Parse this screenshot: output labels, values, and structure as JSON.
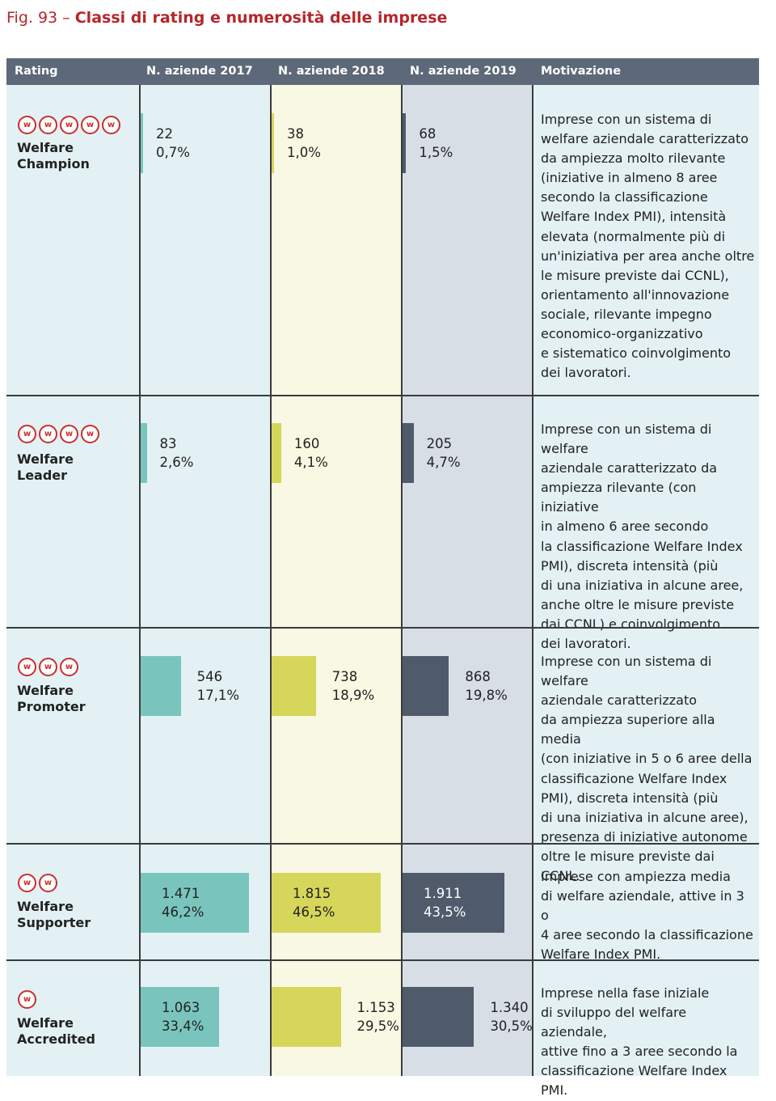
{
  "figure": {
    "number": "Fig. 93 –",
    "title": "Classi di rating e numerosità delle imprese"
  },
  "headers": [
    "Rating",
    "N. aziende 2017",
    "N. aziende 2018",
    "N. aziende 2019",
    "Motivazione"
  ],
  "colors": {
    "header_bg": "#5d6878",
    "col_2017_bg": "#e3f1f4",
    "col_2018_bg": "#f8f8e3",
    "col_2019_bg": "#d7dee6",
    "bar_2017": "#79c5be",
    "bar_2018": "#d6d75a",
    "bar_2019": "#4f5a6b",
    "badge": "#c8302f",
    "title": "#b5262a"
  },
  "chart_data": {
    "type": "table",
    "years": [
      "2017",
      "2018",
      "2019"
    ],
    "rows": [
      {
        "badges": 5,
        "badge_letter": "w",
        "name_line1": "Welfare",
        "name_line2": "Champion",
        "counts": [
          "22",
          "38",
          "68"
        ],
        "percents": [
          "0,7%",
          "1,0%",
          "1,5%"
        ],
        "percent_values": [
          0.7,
          1.0,
          1.5
        ],
        "description": "Imprese con un sistema di\nwelfare aziendale caratterizzato\nda ampiezza molto rilevante\n(iniziative in almeno 8 aree\nsecondo la classificazione\nWelfare Index PMI), intensità\nelevata (normalmente più di\nun'iniziativa per area anche oltre\nle misure previste dai CCNL),\norientamento all'innovazione\nsociale, rilevante impegno\neconomico-organizzativo\ne sistematico coinvolgimento\ndei lavoratori."
      },
      {
        "badges": 4,
        "badge_letter": "w",
        "name_line1": "Welfare",
        "name_line2": "Leader",
        "counts": [
          "83",
          "160",
          "205"
        ],
        "percents": [
          "2,6%",
          "4,1%",
          "4,7%"
        ],
        "percent_values": [
          2.6,
          4.1,
          4.7
        ],
        "description": "Imprese con un sistema di welfare\naziendale caratterizzato da\nampiezza rilevante (con iniziative\nin almeno 6 aree secondo\nla classificazione Welfare Index\nPMI), discreta intensità (più\ndi una iniziativa in alcune aree,\nanche oltre le misure previste\ndai CCNL) e coinvolgimento\ndei lavoratori."
      },
      {
        "badges": 3,
        "badge_letter": "w",
        "name_line1": "Welfare",
        "name_line2": "Promoter",
        "counts": [
          "546",
          "738",
          "868"
        ],
        "percents": [
          "17,1%",
          "18,9%",
          "19,8%"
        ],
        "percent_values": [
          17.1,
          18.9,
          19.8
        ],
        "description": "Imprese con un sistema di welfare\naziendale caratterizzato\nda ampiezza superiore alla media\n(con iniziative in 5 o 6 aree della\nclassificazione Welfare Index\nPMI), discreta intensità (più\ndi una iniziativa in alcune aree),\npresenza di iniziative autonome\noltre le misure previste dai CCNL."
      },
      {
        "badges": 2,
        "badge_letter": "w",
        "name_line1": "Welfare",
        "name_line2": "Supporter",
        "counts": [
          "1.471",
          "1.815",
          "1.911"
        ],
        "percents": [
          "46,2%",
          "46,5%",
          "43,5%"
        ],
        "percent_values": [
          46.2,
          46.5,
          43.5
        ],
        "description": "Imprese con ampiezza media\ndi welfare aziendale, attive in 3 o\n4 aree secondo la classificazione\nWelfare Index PMI."
      },
      {
        "badges": 1,
        "badge_letter": "w",
        "name_line1": "Welfare",
        "name_line2": "Accredited",
        "counts": [
          "1.063",
          "1.153",
          "1.340"
        ],
        "percents": [
          "33,4%",
          "29,5%",
          "30,5%"
        ],
        "percent_values": [
          33.4,
          29.5,
          30.5
        ],
        "description": "Imprese nella fase iniziale\ndi sviluppo del welfare aziendale,\nattive fino a 3 aree secondo la\nclassificazione Welfare Index PMI."
      }
    ]
  }
}
